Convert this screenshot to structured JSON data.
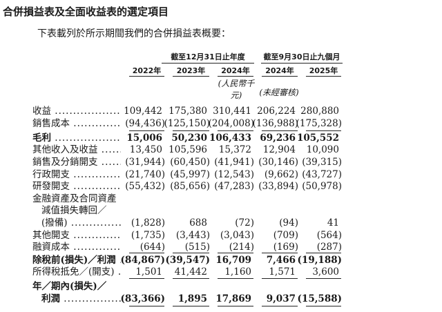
{
  "title": "合併損益表及全面收益表的選定項目",
  "intro": "下表載列於所示期間我們的合併損益表概要：",
  "header": {
    "group_annual": "截至12月31日止年度",
    "group_nine_months": "截至9月30日止九個月",
    "years": [
      "2022年",
      "2023年",
      "2024年",
      "2024年",
      "2025年"
    ],
    "unit_note": "(人民幣千元)",
    "unaudited_note": "(未經審核)"
  },
  "rows": [
    {
      "label": "收益",
      "values": [
        "109,442",
        "175,380",
        "310,441",
        "206,224",
        "280,880"
      ]
    },
    {
      "label": "銷售成本",
      "values": [
        "(94,436)",
        "(125,150)",
        "(204,008)",
        "(136,988)",
        "(175,328)"
      ]
    },
    {
      "label": "毛利",
      "bold": true,
      "values": [
        "15,006",
        "50,230",
        "106,433",
        "69,236",
        "105,552"
      ]
    },
    {
      "label": "其他收入及收益",
      "values": [
        "13,450",
        "105,596",
        "15,372",
        "12,904",
        "10,090"
      ]
    },
    {
      "label": "銷售及分銷開支",
      "values": [
        "(31,944)",
        "(60,450)",
        "(41,941)",
        "(30,146)",
        "(39,315)"
      ]
    },
    {
      "label": "行政開支",
      "values": [
        "(21,740)",
        "(45,997)",
        "(12,543)",
        "(9,662)",
        "(43,727)"
      ]
    },
    {
      "label": "研發開支",
      "values": [
        "(55,432)",
        "(85,656)",
        "(47,283)",
        "(33,894)",
        "(50,978)"
      ]
    },
    {
      "label": "金融資產及合同資產",
      "nodots": true,
      "values": []
    },
    {
      "label": "減值損失轉回／",
      "indent": true,
      "nodots": true,
      "values": []
    },
    {
      "label": "(撥備)",
      "indent": true,
      "values": [
        "(1,828)",
        "688",
        "(72)",
        "(94)",
        "41"
      ]
    },
    {
      "label": "其他開支",
      "values": [
        "(1,735)",
        "(3,443)",
        "(3,043)",
        "(709)",
        "(564)"
      ]
    },
    {
      "label": "融資成本",
      "values": [
        "(644)",
        "(515)",
        "(214)",
        "(169)",
        "(287)"
      ]
    },
    {
      "label": "除稅前(損失)／利潤",
      "bold": true,
      "values": [
        "(84,867)",
        "(39,547)",
        "16,709",
        "7,466",
        "(19,188)"
      ]
    },
    {
      "label": "所得稅抵免／(開支)",
      "values": [
        "1,501",
        "41,442",
        "1,160",
        "1,571",
        "3,600"
      ]
    },
    {
      "label": "年／期內(損失)／",
      "bold": true,
      "nodots": true,
      "values": []
    },
    {
      "label": "利潤",
      "bold": true,
      "indent": true,
      "values": [
        "(83,366)",
        "1,895",
        "17,869",
        "9,037",
        "(15,588)"
      ]
    }
  ]
}
